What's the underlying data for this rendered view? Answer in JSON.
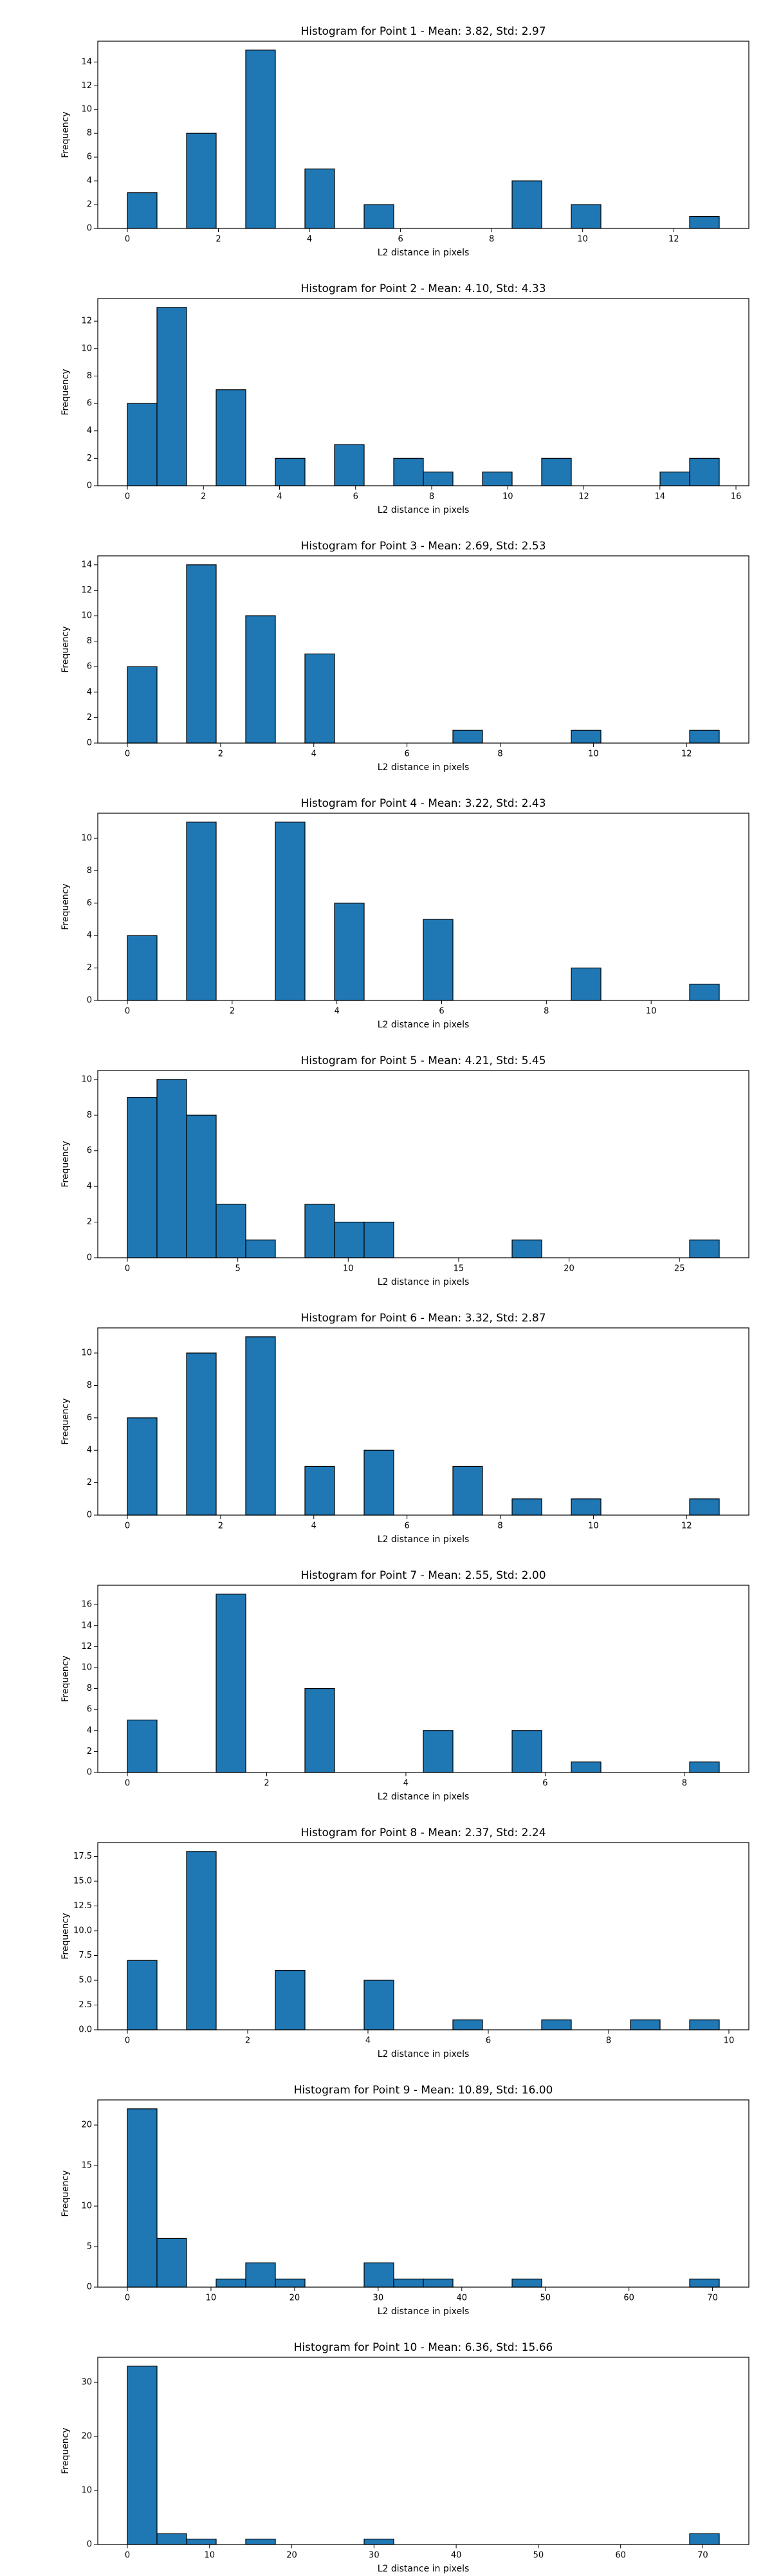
{
  "chart_data": [
    {
      "type": "histogram",
      "title": "Histogram for Point 1 - Mean: 3.82, Std: 2.97",
      "xlabel": "L2 distance in pixels",
      "ylabel": "Frequency",
      "color": "#1f77b4",
      "bins": [
        0,
        0.65,
        1.3,
        1.95,
        2.6,
        3.25,
        3.9,
        4.55,
        5.2,
        5.85,
        6.5,
        7.15,
        7.8,
        8.45,
        9.1,
        9.75,
        10.4,
        11.05,
        11.7,
        12.35,
        13
      ],
      "counts": [
        3,
        0,
        8,
        0,
        15,
        0,
        5,
        0,
        2,
        0,
        0,
        0,
        0,
        4,
        0,
        2,
        0,
        0,
        0,
        1
      ],
      "xlim": [
        -0.65,
        13.65
      ],
      "ylim": [
        0,
        15.75
      ],
      "xticks": [
        0,
        2,
        4,
        6,
        8,
        10,
        12
      ],
      "yticks": [
        0,
        2,
        4,
        6,
        8,
        10,
        12,
        14
      ]
    },
    {
      "type": "histogram",
      "title": "Histogram for Point 2 - Mean: 4.10, Std: 4.33",
      "xlabel": "L2 distance in pixels",
      "ylabel": "Frequency",
      "color": "#1f77b4",
      "bins": [
        0,
        0.778,
        1.556,
        2.334,
        3.112,
        3.89,
        4.668,
        5.446,
        6.224,
        7.002,
        7.78,
        8.558,
        9.336,
        10.114,
        10.892,
        11.67,
        12.448,
        13.226,
        14.004,
        14.782,
        15.56
      ],
      "counts": [
        6,
        13,
        0,
        7,
        0,
        2,
        0,
        3,
        0,
        2,
        1,
        0,
        1,
        0,
        2,
        0,
        0,
        0,
        1,
        2
      ],
      "xlim": [
        -0.778,
        16.338
      ],
      "ylim": [
        0,
        13.65
      ],
      "xticks": [
        0,
        2,
        4,
        6,
        8,
        10,
        12,
        14,
        16
      ],
      "yticks": [
        0,
        2,
        4,
        6,
        8,
        10,
        12
      ]
    },
    {
      "type": "histogram",
      "title": "Histogram for Point 3 - Mean: 2.69, Std: 2.53",
      "xlabel": "L2 distance in pixels",
      "ylabel": "Frequency",
      "color": "#1f77b4",
      "bins": [
        0,
        0.635,
        1.27,
        1.905,
        2.54,
        3.175,
        3.81,
        4.445,
        5.08,
        5.715,
        6.35,
        6.985,
        7.62,
        8.255,
        8.89,
        9.525,
        10.16,
        10.795,
        11.43,
        12.065,
        12.7
      ],
      "counts": [
        6,
        0,
        14,
        0,
        10,
        0,
        7,
        0,
        0,
        0,
        0,
        1,
        0,
        0,
        0,
        1,
        0,
        0,
        0,
        1
      ],
      "xlim": [
        -0.635,
        13.335
      ],
      "ylim": [
        0,
        14.7
      ],
      "xticks": [
        0,
        2,
        4,
        6,
        8,
        10,
        12
      ],
      "yticks": [
        0,
        2,
        4,
        6,
        8,
        10,
        12,
        14
      ]
    },
    {
      "type": "histogram",
      "title": "Histogram for Point 4 - Mean: 3.22, Std: 2.43",
      "xlabel": "L2 distance in pixels",
      "ylabel": "Frequency",
      "color": "#1f77b4",
      "bins": [
        0,
        0.565,
        1.13,
        1.695,
        2.26,
        2.825,
        3.39,
        3.955,
        4.52,
        5.085,
        5.65,
        6.215,
        6.78,
        7.345,
        7.91,
        8.475,
        9.04,
        9.605,
        10.17,
        10.735,
        11.3
      ],
      "counts": [
        4,
        0,
        11,
        0,
        0,
        11,
        0,
        6,
        0,
        0,
        5,
        0,
        0,
        0,
        0,
        2,
        0,
        0,
        0,
        1
      ],
      "xlim": [
        -0.565,
        11.865
      ],
      "ylim": [
        0,
        11.55
      ],
      "xticks": [
        0,
        2,
        4,
        6,
        8,
        10
      ],
      "yticks": [
        0,
        2,
        4,
        6,
        8,
        10
      ]
    },
    {
      "type": "histogram",
      "title": "Histogram for Point 5 - Mean: 4.21, Std: 5.45",
      "xlabel": "L2 distance in pixels",
      "ylabel": "Frequency",
      "color": "#1f77b4",
      "bins": [
        0,
        1.34,
        2.68,
        4.02,
        5.36,
        6.7,
        8.04,
        9.38,
        10.72,
        12.06,
        13.4,
        14.74,
        16.08,
        17.42,
        18.76,
        20.1,
        21.44,
        22.78,
        24.12,
        25.46,
        26.8
      ],
      "counts": [
        9,
        10,
        8,
        3,
        1,
        0,
        3,
        2,
        2,
        0,
        0,
        0,
        0,
        1,
        0,
        0,
        0,
        0,
        0,
        1
      ],
      "xlim": [
        -1.34,
        28.14
      ],
      "ylim": [
        0,
        10.5
      ],
      "xticks": [
        0,
        5,
        10,
        15,
        20,
        25
      ],
      "yticks": [
        0,
        2,
        4,
        6,
        8,
        10
      ]
    },
    {
      "type": "histogram",
      "title": "Histogram for Point 6 - Mean: 3.32, Std: 2.87",
      "xlabel": "L2 distance in pixels",
      "ylabel": "Frequency",
      "color": "#1f77b4",
      "bins": [
        0,
        0.635,
        1.27,
        1.905,
        2.54,
        3.175,
        3.81,
        4.445,
        5.08,
        5.715,
        6.35,
        6.985,
        7.62,
        8.255,
        8.89,
        9.525,
        10.16,
        10.795,
        11.43,
        12.065,
        12.7
      ],
      "counts": [
        6,
        0,
        10,
        0,
        11,
        0,
        3,
        0,
        4,
        0,
        0,
        3,
        0,
        1,
        0,
        1,
        0,
        0,
        0,
        1
      ],
      "xlim": [
        -0.635,
        13.335
      ],
      "ylim": [
        0,
        11.55
      ],
      "xticks": [
        0,
        2,
        4,
        6,
        8,
        10,
        12
      ],
      "yticks": [
        0,
        2,
        4,
        6,
        8,
        10
      ]
    },
    {
      "type": "histogram",
      "title": "Histogram for Point 7 - Mean: 2.55, Std: 2.00",
      "xlabel": "L2 distance in pixels",
      "ylabel": "Frequency",
      "color": "#1f77b4",
      "bins": [
        0,
        0.425,
        0.85,
        1.275,
        1.7,
        2.125,
        2.55,
        2.975,
        3.4,
        3.825,
        4.25,
        4.675,
        5.1,
        5.525,
        5.95,
        6.375,
        6.8,
        7.225,
        7.65,
        8.075,
        8.5
      ],
      "counts": [
        5,
        0,
        0,
        17,
        0,
        0,
        8,
        0,
        0,
        0,
        4,
        0,
        0,
        4,
        0,
        1,
        0,
        0,
        0,
        1
      ],
      "xlim": [
        -0.425,
        8.925
      ],
      "ylim": [
        0,
        17.85
      ],
      "xticks": [
        0,
        2,
        4,
        6,
        8
      ],
      "yticks": [
        0,
        2,
        4,
        6,
        8,
        10,
        12,
        14,
        16
      ]
    },
    {
      "type": "histogram",
      "title": "Histogram for Point 8 - Mean: 2.37, Std: 2.24",
      "xlabel": "L2 distance in pixels",
      "ylabel": "Frequency",
      "color": "#1f77b4",
      "bins": [
        0,
        0.492,
        0.984,
        1.476,
        1.968,
        2.46,
        2.952,
        3.444,
        3.936,
        4.428,
        4.92,
        5.412,
        5.904,
        6.396,
        6.888,
        7.38,
        7.872,
        8.364,
        8.856,
        9.348,
        9.84
      ],
      "counts": [
        7,
        0,
        18,
        0,
        0,
        6,
        0,
        0,
        5,
        0,
        0,
        1,
        0,
        0,
        1,
        0,
        0,
        1,
        0,
        1
      ],
      "xlim": [
        -0.492,
        10.332
      ],
      "ylim": [
        0,
        18.9
      ],
      "xticks": [
        0,
        2,
        4,
        6,
        8,
        10
      ],
      "yticks": [
        {
          "value": 0,
          "label": "0.0"
        },
        2.5,
        {
          "value": 5,
          "label": "5.0"
        },
        7.5,
        {
          "value": 10,
          "label": "10.0"
        },
        12.5,
        {
          "value": 15,
          "label": "15.0"
        },
        17.5
      ]
    },
    {
      "type": "histogram",
      "title": "Histogram for Point 9 - Mean: 10.89, Std: 16.00",
      "xlabel": "L2 distance in pixels",
      "ylabel": "Frequency",
      "color": "#1f77b4",
      "bins": [
        0,
        3.54,
        7.08,
        10.62,
        14.16,
        17.7,
        21.24,
        24.78,
        28.32,
        31.86,
        35.4,
        38.94,
        42.48,
        46.02,
        49.56,
        53.1,
        56.64,
        60.18,
        63.72,
        67.26,
        70.8
      ],
      "counts": [
        22,
        6,
        0,
        1,
        3,
        1,
        0,
        0,
        3,
        1,
        1,
        0,
        0,
        1,
        0,
        0,
        0,
        0,
        0,
        1
      ],
      "xlim": [
        -3.54,
        74.34
      ],
      "ylim": [
        0,
        23.1
      ],
      "xticks": [
        0,
        10,
        20,
        30,
        40,
        50,
        60,
        70
      ],
      "yticks": [
        0,
        5,
        10,
        15,
        20
      ]
    },
    {
      "type": "histogram",
      "title": "Histogram for Point 10 - Mean: 6.36, Std: 15.66",
      "xlabel": "L2 distance in pixels",
      "ylabel": "Frequency",
      "color": "#1f77b4",
      "bins": [
        0,
        3.6,
        7.2,
        10.8,
        14.4,
        18,
        21.6,
        25.2,
        28.8,
        32.4,
        36,
        39.6,
        43.2,
        46.8,
        50.4,
        54,
        57.6,
        61.2,
        64.8,
        68.4,
        72
      ],
      "counts": [
        33,
        2,
        1,
        0,
        1,
        0,
        0,
        0,
        1,
        0,
        0,
        0,
        0,
        0,
        0,
        0,
        0,
        0,
        0,
        2
      ],
      "xlim": [
        -3.6,
        75.6
      ],
      "ylim": [
        0,
        34.65
      ],
      "xticks": [
        0,
        10,
        20,
        30,
        40,
        50,
        60,
        70
      ],
      "yticks": [
        0,
        10,
        20,
        30
      ]
    }
  ]
}
